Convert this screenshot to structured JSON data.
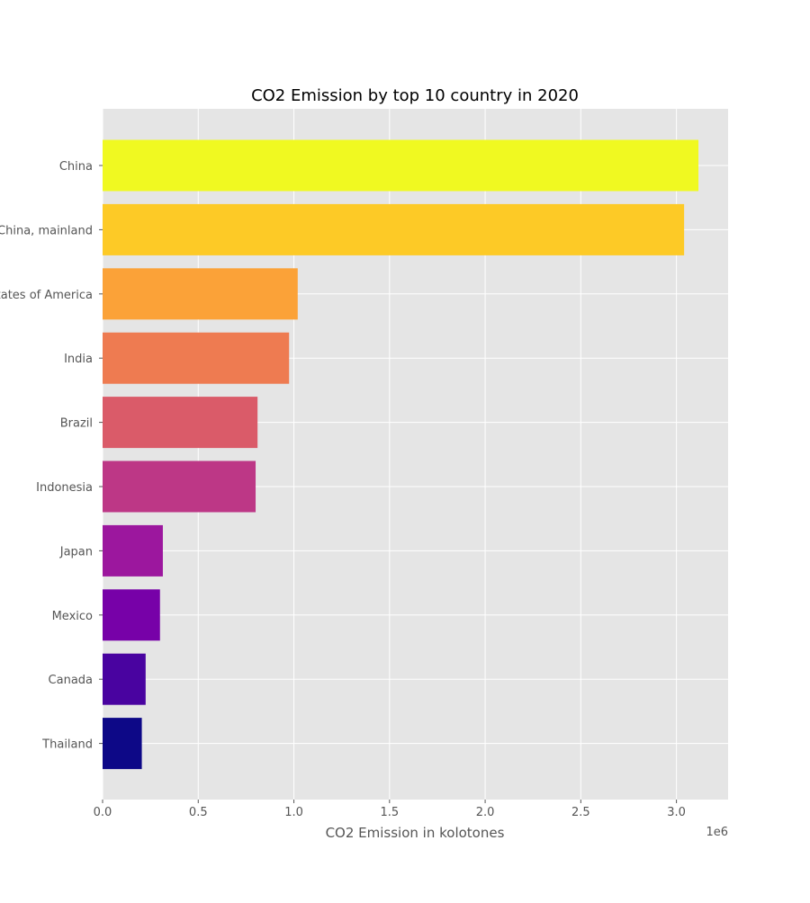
{
  "chart_data": {
    "type": "bar",
    "orientation": "horizontal",
    "title": "CO2 Emission by top 10 country in 2020",
    "xlabel": "CO2 Emission in kolotones",
    "ylabel": "",
    "x_offset_text": "1e6",
    "xlim": [
      0,
      3270000
    ],
    "x_ticks": [
      0,
      500000,
      1000000,
      1500000,
      2000000,
      2500000,
      3000000
    ],
    "x_tick_labels": [
      "0.0",
      "0.5",
      "1.0",
      "1.5",
      "2.0",
      "2.5",
      "3.0"
    ],
    "grid": true,
    "legend": "none",
    "categories": [
      "China",
      "China, mainland",
      "United States of America",
      "India",
      "Brazil",
      "Indonesia",
      "Japan",
      "Mexico",
      "Canada",
      "Thailand"
    ],
    "values": [
      3115000,
      3040000,
      1020000,
      975000,
      810000,
      800000,
      315000,
      300000,
      225000,
      205000
    ],
    "colors": [
      "#f0f921",
      "#fdca26",
      "#fba238",
      "#ee7b51",
      "#da5b69",
      "#bd3786",
      "#9c179e",
      "#7701a8",
      "#4903a0",
      "#0d0887"
    ],
    "background": "#e5e5e5",
    "grid_color": "#ffffff"
  }
}
